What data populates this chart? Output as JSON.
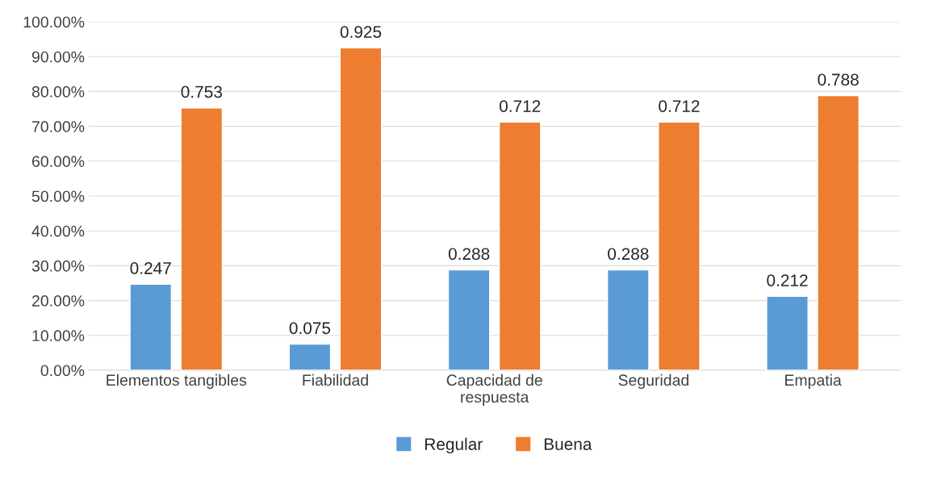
{
  "chart_data": {
    "type": "bar",
    "categories": [
      "Elementos tangibles",
      "Fiabilidad",
      "Capacidad de\nrespuesta",
      "Seguridad",
      "Empatia"
    ],
    "series": [
      {
        "name": "Regular",
        "color": "#5b9bd5",
        "values": [
          0.247,
          0.075,
          0.288,
          0.288,
          0.212
        ]
      },
      {
        "name": "Buena",
        "color": "#ed7d31",
        "values": [
          0.753,
          0.925,
          0.712,
          0.712,
          0.788
        ]
      }
    ],
    "ylim": [
      0,
      1
    ],
    "yticks": [
      {
        "value": 0,
        "label": "0.00%"
      },
      {
        "value": 0.1,
        "label": "10.00%"
      },
      {
        "value": 0.2,
        "label": "20.00%"
      },
      {
        "value": 0.3,
        "label": "30.00%"
      },
      {
        "value": 0.4,
        "label": "40.00%"
      },
      {
        "value": 0.5,
        "label": "50.00%"
      },
      {
        "value": 0.6,
        "label": "60.00%"
      },
      {
        "value": 0.7,
        "label": "70.00%"
      },
      {
        "value": 0.8,
        "label": "80.00%"
      },
      {
        "value": 0.9,
        "label": "90.00%"
      },
      {
        "value": 1,
        "label": "100.00%"
      }
    ],
    "data_labels": true,
    "grid": "y",
    "legend": "bottom"
  }
}
